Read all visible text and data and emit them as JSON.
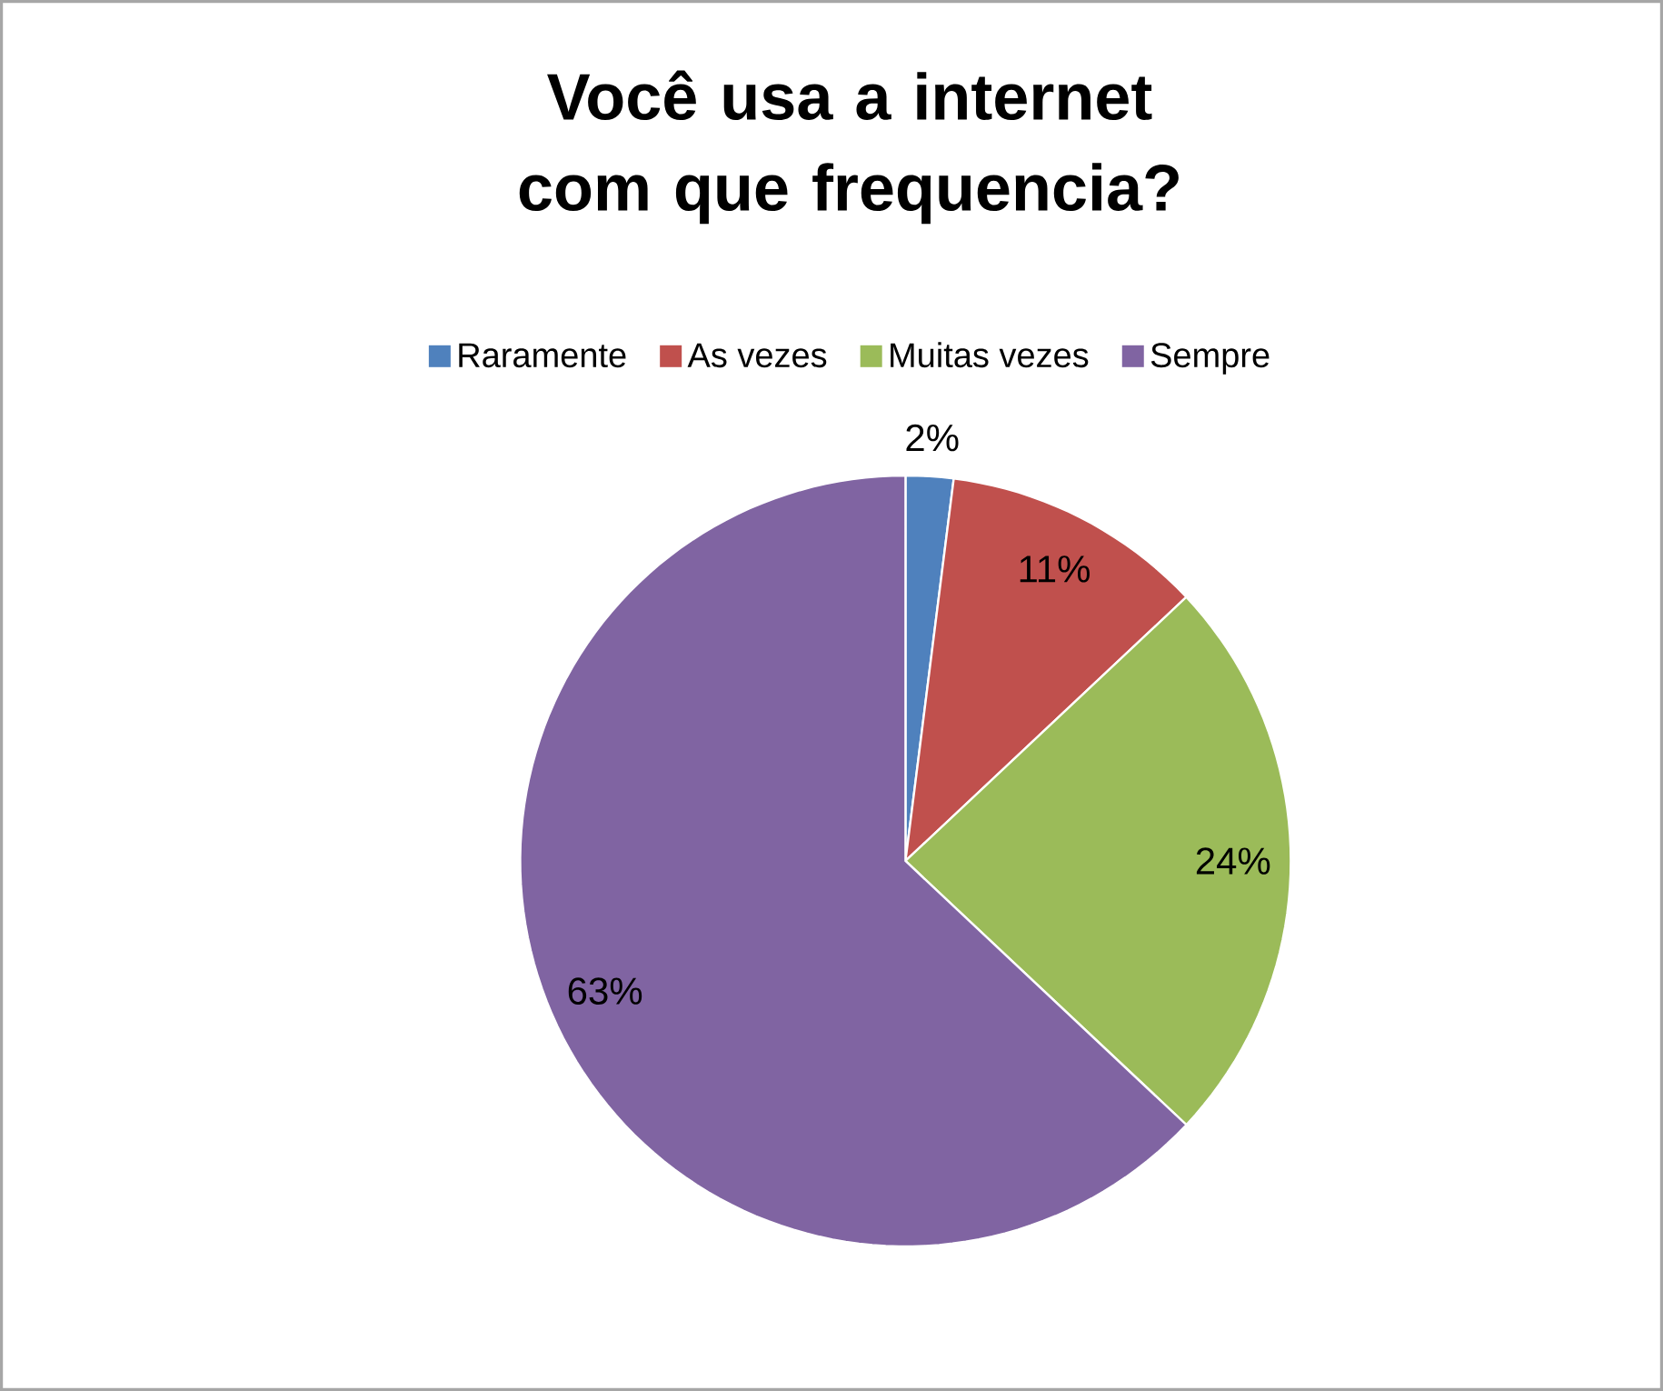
{
  "chart_data": {
    "type": "pie",
    "title": "Você usa a internet com que frequencia?",
    "categories": [
      "Raramente",
      "As vezes",
      "Muitas vezes",
      "Sempre"
    ],
    "values": [
      2,
      11,
      24,
      63
    ],
    "colors": [
      "#4f81bd",
      "#c0504d",
      "#9bbb59",
      "#8064a2"
    ],
    "value_labels": [
      "2%",
      "11%",
      "24%",
      "63%"
    ],
    "legend": "top"
  }
}
